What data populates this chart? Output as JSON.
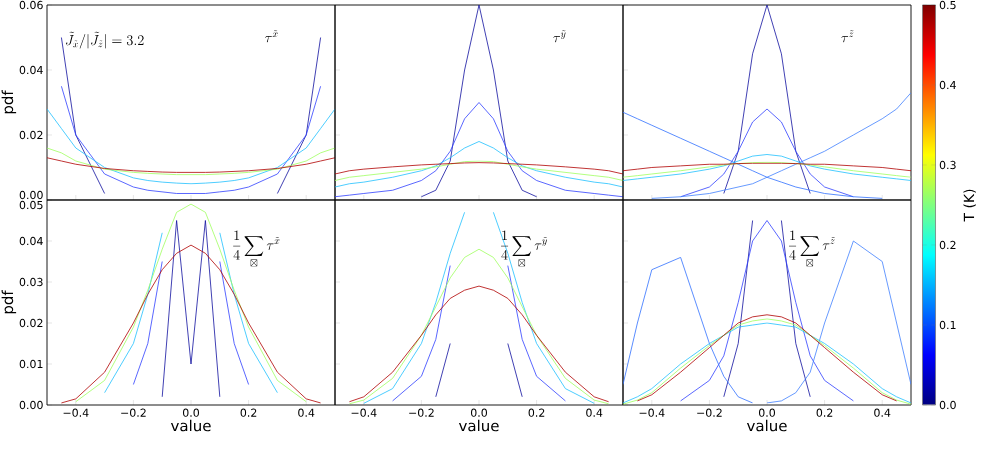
{
  "chart_data": [
    {
      "type": "line",
      "ylabel": "pdf",
      "tick_labels": "y",
      "annotations": [
        "\\tilde{J}_{\\tilde{x}}/|\\tilde{J}_{\\tilde{z}}|=3.2",
        "\\tau^{\\tilde{x}}"
      ],
      "x": [
        -0.5,
        -0.45,
        -0.4,
        -0.3,
        -0.2,
        -0.15,
        -0.1,
        -0.05,
        0,
        0.05,
        0.1,
        0.15,
        0.2,
        0.3,
        0.4,
        0.45,
        0.5
      ],
      "xlim": [
        -0.5,
        0.5
      ],
      "xticks": [
        -0.4,
        -0.2,
        0,
        0.2,
        0.4
      ],
      "ylim": [
        0,
        0.06
      ],
      "yticks": [
        {
          "value": 0,
          "label": "0.00"
        },
        {
          "value": 0.02,
          "label": "0.02"
        },
        {
          "value": 0.04,
          "label": "0.04"
        },
        {
          "value": 0.06,
          "label": "0.06"
        }
      ],
      "series": [
        {
          "color": "#1010a0",
          "values": [
            null,
            0.05,
            0.02,
            0.002,
            null,
            null,
            null,
            null,
            null,
            null,
            null,
            null,
            null,
            0.002,
            0.02,
            0.05,
            null
          ]
        },
        {
          "color": "#3040ff",
          "values": [
            null,
            0.035,
            0.02,
            0.008,
            0.004,
            0.003,
            0.0025,
            0.002,
            0.002,
            0.002,
            0.0025,
            0.003,
            0.004,
            0.008,
            0.02,
            0.035,
            null
          ]
        },
        {
          "color": "#20c0ff",
          "values": [
            0.028,
            0.022,
            0.016,
            0.01,
            0.0068,
            0.006,
            0.0055,
            0.0052,
            0.005,
            0.0052,
            0.0055,
            0.006,
            0.0068,
            0.01,
            0.016,
            0.022,
            0.028
          ]
        },
        {
          "color": "#a0ff60",
          "values": [
            0.016,
            0.0145,
            0.012,
            0.0095,
            0.0085,
            0.0082,
            0.008,
            0.0078,
            0.0078,
            0.0078,
            0.008,
            0.0082,
            0.0085,
            0.0095,
            0.012,
            0.0145,
            0.016
          ]
        },
        {
          "color": "#b00000",
          "values": [
            0.013,
            0.012,
            0.011,
            0.0097,
            0.009,
            0.0088,
            0.0086,
            0.0085,
            0.0085,
            0.0085,
            0.0086,
            0.0088,
            0.009,
            0.0097,
            0.011,
            0.012,
            0.013
          ]
        }
      ]
    },
    {
      "type": "line",
      "tick_labels": false,
      "annotations": [
        "\\tau^{\\tilde{y}}"
      ],
      "x": [
        -0.5,
        -0.45,
        -0.4,
        -0.3,
        -0.2,
        -0.15,
        -0.1,
        -0.05,
        0,
        0.05,
        0.1,
        0.15,
        0.2,
        0.3,
        0.4,
        0.45,
        0.5
      ],
      "xlim": [
        -0.5,
        0.5
      ],
      "xticks": [
        -0.4,
        -0.2,
        0,
        0.2,
        0.4
      ],
      "ylim": [
        0,
        0.06
      ],
      "yticks": [
        0,
        0.02,
        0.04,
        0.06
      ],
      "series": [
        {
          "color": "#1010a0",
          "values": [
            null,
            null,
            null,
            null,
            0.001,
            0.003,
            0.012,
            0.04,
            0.06,
            0.04,
            0.012,
            0.003,
            0.001,
            null,
            null,
            null,
            null
          ]
        },
        {
          "color": "#3040ff",
          "values": [
            0.001,
            0.0015,
            0.002,
            0.003,
            0.006,
            0.009,
            0.015,
            0.025,
            0.03,
            0.025,
            0.015,
            0.009,
            0.006,
            0.003,
            0.002,
            0.0015,
            0.001
          ]
        },
        {
          "color": "#20c0ff",
          "values": [
            0.004,
            0.005,
            0.0055,
            0.007,
            0.009,
            0.0105,
            0.013,
            0.016,
            0.018,
            0.016,
            0.013,
            0.0105,
            0.009,
            0.007,
            0.0055,
            0.005,
            0.004
          ]
        },
        {
          "color": "#a0ff60",
          "values": [
            0.006,
            0.007,
            0.0075,
            0.0085,
            0.0095,
            0.0102,
            0.011,
            0.0118,
            0.012,
            0.0118,
            0.011,
            0.0102,
            0.0095,
            0.0085,
            0.0075,
            0.007,
            0.006
          ]
        },
        {
          "color": "#b00000",
          "values": [
            0.008,
            0.009,
            0.0095,
            0.0102,
            0.0108,
            0.011,
            0.0112,
            0.0114,
            0.0115,
            0.0114,
            0.0112,
            0.011,
            0.0108,
            0.0102,
            0.0095,
            0.009,
            0.008
          ]
        }
      ]
    },
    {
      "type": "line",
      "tick_labels": false,
      "annotations": [
        "\\tau^{\\tilde{z}}"
      ],
      "clabel": "T (K)",
      "clim": [
        0,
        0.5
      ],
      "cticks": [
        {
          "value": 0,
          "label": "0.0"
        },
        {
          "value": 0.1,
          "label": "0.1"
        },
        {
          "value": 0.2,
          "label": "0.2"
        },
        {
          "value": 0.3,
          "label": "0.3"
        },
        {
          "value": 0.4,
          "label": "0.4"
        },
        {
          "value": 0.5,
          "label": "0.5"
        }
      ],
      "x": [
        -0.5,
        -0.45,
        -0.4,
        -0.3,
        -0.2,
        -0.15,
        -0.1,
        -0.05,
        0,
        0.05,
        0.1,
        0.15,
        0.2,
        0.3,
        0.4,
        0.45,
        0.5
      ],
      "xlim": [
        -0.5,
        0.5
      ],
      "xticks": [
        -0.4,
        -0.2,
        0,
        0.2,
        0.4
      ],
      "ylim": [
        0,
        0.06
      ],
      "yticks": [
        0,
        0.02,
        0.04,
        0.06
      ],
      "series": [
        {
          "color": "#1010a0",
          "values": [
            null,
            null,
            null,
            null,
            null,
            0.002,
            0.015,
            0.045,
            0.06,
            0.045,
            0.015,
            0.002,
            null,
            null,
            null,
            null,
            null
          ]
        },
        {
          "color": "#3040ff",
          "values": [
            null,
            null,
            null,
            0.001,
            0.004,
            0.008,
            0.015,
            0.024,
            0.028,
            0.024,
            0.015,
            0.008,
            0.004,
            0.001,
            null,
            null,
            null
          ]
        },
        {
          "color": "#3070ff",
          "values": [
            0.027,
            0.025,
            0.023,
            0.019,
            0.015,
            0.013,
            0.011,
            0.009,
            0.007,
            0.0055,
            0.004,
            0.003,
            0.002,
            0.001,
            0.0005,
            null,
            null
          ]
        },
        {
          "color": "#4080ff",
          "values": [
            null,
            null,
            0.0005,
            0.001,
            0.002,
            0.003,
            0.004,
            0.005,
            0.007,
            0.009,
            0.011,
            0.013,
            0.015,
            0.02,
            0.025,
            0.028,
            0.033
          ]
        },
        {
          "color": "#20c0ff",
          "values": [
            0.006,
            0.0065,
            0.007,
            0.008,
            0.0095,
            0.0105,
            0.012,
            0.0135,
            0.014,
            0.0135,
            0.012,
            0.0105,
            0.0095,
            0.008,
            0.007,
            0.0065,
            0.006
          ]
        },
        {
          "color": "#a0ff60",
          "values": [
            0.007,
            0.0075,
            0.008,
            0.009,
            0.0102,
            0.0108,
            0.0112,
            0.0115,
            0.0116,
            0.0115,
            0.0112,
            0.0108,
            0.0102,
            0.009,
            0.008,
            0.0075,
            0.007
          ]
        },
        {
          "color": "#b00000",
          "values": [
            0.009,
            0.0095,
            0.01,
            0.0105,
            0.011,
            0.011,
            0.0112,
            0.0113,
            0.0113,
            0.0113,
            0.0112,
            0.011,
            0.011,
            0.0105,
            0.01,
            0.0095,
            0.009
          ]
        }
      ]
    },
    {
      "type": "line",
      "ylabel": "pdf",
      "xlabel": "value",
      "annotations": [
        "\\frac{1}{4}\\sum_{\\boxtimes}\\tau^{\\tilde{x}}"
      ],
      "x": [
        -0.45,
        -0.4,
        -0.3,
        -0.2,
        -0.15,
        -0.1,
        -0.05,
        0,
        0.05,
        0.1,
        0.15,
        0.2,
        0.3,
        0.4,
        0.45
      ],
      "xlim": [
        -0.5,
        0.5
      ],
      "xticks": [
        {
          "value": -0.4,
          "label": "−0.4"
        },
        {
          "value": -0.2,
          "label": "−0.2"
        },
        {
          "value": 0,
          "label": "0.0"
        },
        {
          "value": 0.2,
          "label": "0.2"
        },
        {
          "value": 0.4,
          "label": "0.4"
        }
      ],
      "ylim": [
        0,
        0.05
      ],
      "yticks": [
        {
          "value": 0,
          "label": "0.00"
        },
        {
          "value": 0.01,
          "label": "0.01"
        },
        {
          "value": 0.02,
          "label": "0.02"
        },
        {
          "value": 0.03,
          "label": "0.03"
        },
        {
          "value": 0.04,
          "label": "0.04"
        },
        {
          "value": 0.05,
          "label": "0.05"
        }
      ],
      "series": [
        {
          "color": "#1010a0",
          "values": [
            null,
            null,
            null,
            null,
            null,
            0.002,
            0.045,
            0.01,
            0.045,
            0.002,
            null,
            null,
            null,
            null,
            null
          ]
        },
        {
          "color": "#3040ff",
          "values": [
            null,
            null,
            null,
            0.005,
            0.015,
            0.035,
            null,
            null,
            null,
            0.035,
            0.015,
            0.005,
            null,
            null,
            null
          ]
        },
        {
          "color": "#20c0ff",
          "values": [
            null,
            null,
            0.003,
            0.015,
            0.027,
            0.042,
            null,
            null,
            null,
            0.042,
            0.027,
            0.015,
            0.003,
            null,
            null
          ]
        },
        {
          "color": "#a0ff60",
          "values": [
            null,
            0.0008,
            0.006,
            0.019,
            0.028,
            0.038,
            0.047,
            0.049,
            0.047,
            0.038,
            0.028,
            0.019,
            0.006,
            0.0008,
            null
          ]
        },
        {
          "color": "#b00000",
          "values": [
            0.0005,
            0.0015,
            0.008,
            0.02,
            0.027,
            0.033,
            0.037,
            0.039,
            0.037,
            0.033,
            0.027,
            0.02,
            0.008,
            0.0015,
            0.0005
          ]
        }
      ]
    },
    {
      "type": "line",
      "xlabel": "value",
      "tick_labels": "x",
      "annotations": [
        "\\frac{1}{4}\\sum_{\\boxtimes}\\tau^{\\tilde{y}}"
      ],
      "x": [
        -0.45,
        -0.4,
        -0.3,
        -0.2,
        -0.15,
        -0.1,
        -0.05,
        0,
        0.05,
        0.1,
        0.15,
        0.2,
        0.3,
        0.4,
        0.45
      ],
      "xlim": [
        -0.5,
        0.5
      ],
      "xticks": [
        {
          "value": -0.4,
          "label": "−0.4"
        },
        {
          "value": -0.2,
          "label": "−0.2"
        },
        {
          "value": 0,
          "label": "0.0"
        },
        {
          "value": 0.2,
          "label": "0.2"
        },
        {
          "value": 0.4,
          "label": "0.4"
        }
      ],
      "ylim": [
        0,
        0.05
      ],
      "yticks": [
        0,
        0.01,
        0.02,
        0.03,
        0.04,
        0.05
      ],
      "series": [
        {
          "color": "#1010a0",
          "values": [
            null,
            null,
            null,
            null,
            0.002,
            0.015,
            null,
            null,
            null,
            0.015,
            0.002,
            null,
            null,
            null,
            null
          ]
        },
        {
          "color": "#3040ff",
          "values": [
            null,
            null,
            0.001,
            0.007,
            0.016,
            0.034,
            null,
            null,
            null,
            0.034,
            0.016,
            0.007,
            0.001,
            null,
            null
          ]
        },
        {
          "color": "#20c0ff",
          "values": [
            null,
            0.0004,
            0.004,
            0.015,
            0.025,
            0.037,
            0.047,
            null,
            0.047,
            0.037,
            0.025,
            0.015,
            0.004,
            0.0004,
            null
          ]
        },
        {
          "color": "#a0ff60",
          "values": [
            0.0003,
            0.0012,
            0.0065,
            0.017,
            0.024,
            0.031,
            0.036,
            0.038,
            0.036,
            0.031,
            0.024,
            0.017,
            0.0065,
            0.0012,
            0.0003
          ]
        },
        {
          "color": "#b00000",
          "values": [
            0.0008,
            0.002,
            0.008,
            0.017,
            0.022,
            0.026,
            0.028,
            0.029,
            0.028,
            0.026,
            0.022,
            0.017,
            0.008,
            0.002,
            0.0008
          ]
        }
      ]
    },
    {
      "type": "line",
      "xlabel": "value",
      "tick_labels": "x",
      "annotations": [
        "\\frac{1}{4}\\sum_{\\boxtimes}\\tau^{\\tilde{z}}"
      ],
      "x": [
        -0.5,
        -0.45,
        -0.4,
        -0.3,
        -0.2,
        -0.15,
        -0.1,
        -0.05,
        0,
        0.05,
        0.1,
        0.15,
        0.2,
        0.3,
        0.4,
        0.45,
        0.5
      ],
      "xlim": [
        -0.5,
        0.5
      ],
      "xticks": [
        {
          "value": -0.4,
          "label": "−0.4"
        },
        {
          "value": -0.2,
          "label": "−0.2"
        },
        {
          "value": 0,
          "label": "0.0"
        },
        {
          "value": 0.2,
          "label": "0.2"
        },
        {
          "value": 0.4,
          "label": "0.4"
        }
      ],
      "ylim": [
        0,
        0.05
      ],
      "yticks": [
        0,
        0.01,
        0.02,
        0.03,
        0.04,
        0.05
      ],
      "series": [
        {
          "color": "#1010a0",
          "values": [
            null,
            null,
            null,
            null,
            null,
            0.002,
            0.015,
            0.045,
            null,
            0.045,
            0.015,
            0.002,
            null,
            null,
            null,
            null,
            null
          ]
        },
        {
          "color": "#3040ff",
          "values": [
            null,
            null,
            null,
            0.001,
            0.006,
            0.012,
            0.025,
            0.04,
            0.045,
            0.04,
            0.025,
            0.012,
            0.006,
            0.001,
            null,
            null,
            null
          ]
        },
        {
          "color": "#3070ff",
          "values": [
            0.005,
            0.02,
            0.033,
            0.036,
            0.015,
            0.007,
            0.002,
            0.0005,
            null,
            null,
            null,
            null,
            null,
            null,
            null,
            null,
            null
          ]
        },
        {
          "color": "#4080ff",
          "values": [
            null,
            null,
            null,
            null,
            null,
            null,
            null,
            null,
            0.0005,
            0.001,
            0.003,
            0.008,
            0.02,
            0.04,
            0.035,
            0.02,
            0.005
          ]
        },
        {
          "color": "#20c0ff",
          "values": [
            0.0005,
            0.002,
            0.004,
            0.01,
            0.015,
            0.017,
            0.019,
            0.0195,
            0.02,
            0.0195,
            0.019,
            0.017,
            0.015,
            0.01,
            0.004,
            0.002,
            0.0005
          ]
        },
        {
          "color": "#a0ff60",
          "values": [
            0.0002,
            0.0012,
            0.003,
            0.009,
            0.0145,
            0.017,
            0.0195,
            0.0205,
            0.021,
            0.0205,
            0.0195,
            0.017,
            0.0145,
            0.009,
            0.003,
            0.0012,
            0.0002
          ]
        },
        {
          "color": "#b00000",
          "values": [
            null,
            0.001,
            0.0025,
            0.008,
            0.014,
            0.017,
            0.02,
            0.0215,
            0.022,
            0.0215,
            0.02,
            0.017,
            0.014,
            0.008,
            0.0025,
            0.001,
            null
          ]
        }
      ]
    }
  ]
}
